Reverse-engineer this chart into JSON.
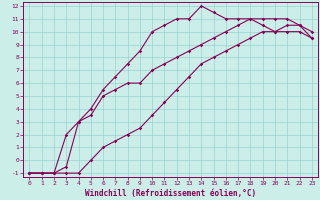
{
  "xlabel": "Windchill (Refroidissement éolien,°C)",
  "bg_color": "#cceee8",
  "line_color": "#880055",
  "xlim": [
    -0.5,
    23.5
  ],
  "ylim": [
    -1.3,
    12.3
  ],
  "xticks": [
    0,
    1,
    2,
    3,
    4,
    5,
    6,
    7,
    8,
    9,
    10,
    11,
    12,
    13,
    14,
    15,
    16,
    17,
    18,
    19,
    20,
    21,
    22,
    23
  ],
  "yticks": [
    -1,
    0,
    1,
    2,
    3,
    4,
    5,
    6,
    7,
    8,
    9,
    10,
    11,
    12
  ],
  "line1_x": [
    0,
    1,
    2,
    3,
    4,
    5,
    6,
    7,
    8,
    9,
    10,
    11,
    12,
    13,
    14,
    15,
    16,
    17,
    18,
    19,
    20,
    21,
    22,
    23
  ],
  "line1_y": [
    -1,
    -1,
    -1,
    -0.5,
    3,
    4,
    5.5,
    6.5,
    7.5,
    8.5,
    10,
    10.5,
    11,
    11,
    12,
    11.5,
    11,
    11,
    11,
    10.5,
    10,
    10.5,
    10.5,
    10
  ],
  "line2_x": [
    0,
    1,
    2,
    3,
    4,
    5,
    6,
    7,
    8,
    9,
    10,
    11,
    12,
    13,
    14,
    15,
    16,
    17,
    18,
    19,
    20,
    21,
    22,
    23
  ],
  "line2_y": [
    -1,
    -1,
    -1,
    -1,
    -1,
    0,
    1,
    1.5,
    2,
    2.5,
    3.5,
    4.5,
    5.5,
    6.5,
    7.5,
    8,
    8.5,
    9,
    9.5,
    10,
    10,
    10,
    10,
    9.5
  ],
  "line3_x": [
    0,
    1,
    2,
    3,
    4,
    5,
    6,
    7,
    8,
    9,
    10,
    11,
    12,
    13,
    14,
    15,
    16,
    17,
    18,
    19,
    20,
    21,
    22,
    23
  ],
  "line3_y": [
    -1,
    -1,
    -1,
    2,
    3,
    3.5,
    5,
    5.5,
    6,
    6,
    7,
    7.5,
    8,
    8.5,
    9,
    9.5,
    10,
    10.5,
    11,
    11,
    11,
    11,
    10.5,
    9.5
  ],
  "marker": "D",
  "marker_size": 1.8,
  "linewidth": 0.8,
  "tick_fontsize": 4.5,
  "xlabel_fontsize": 5.5
}
